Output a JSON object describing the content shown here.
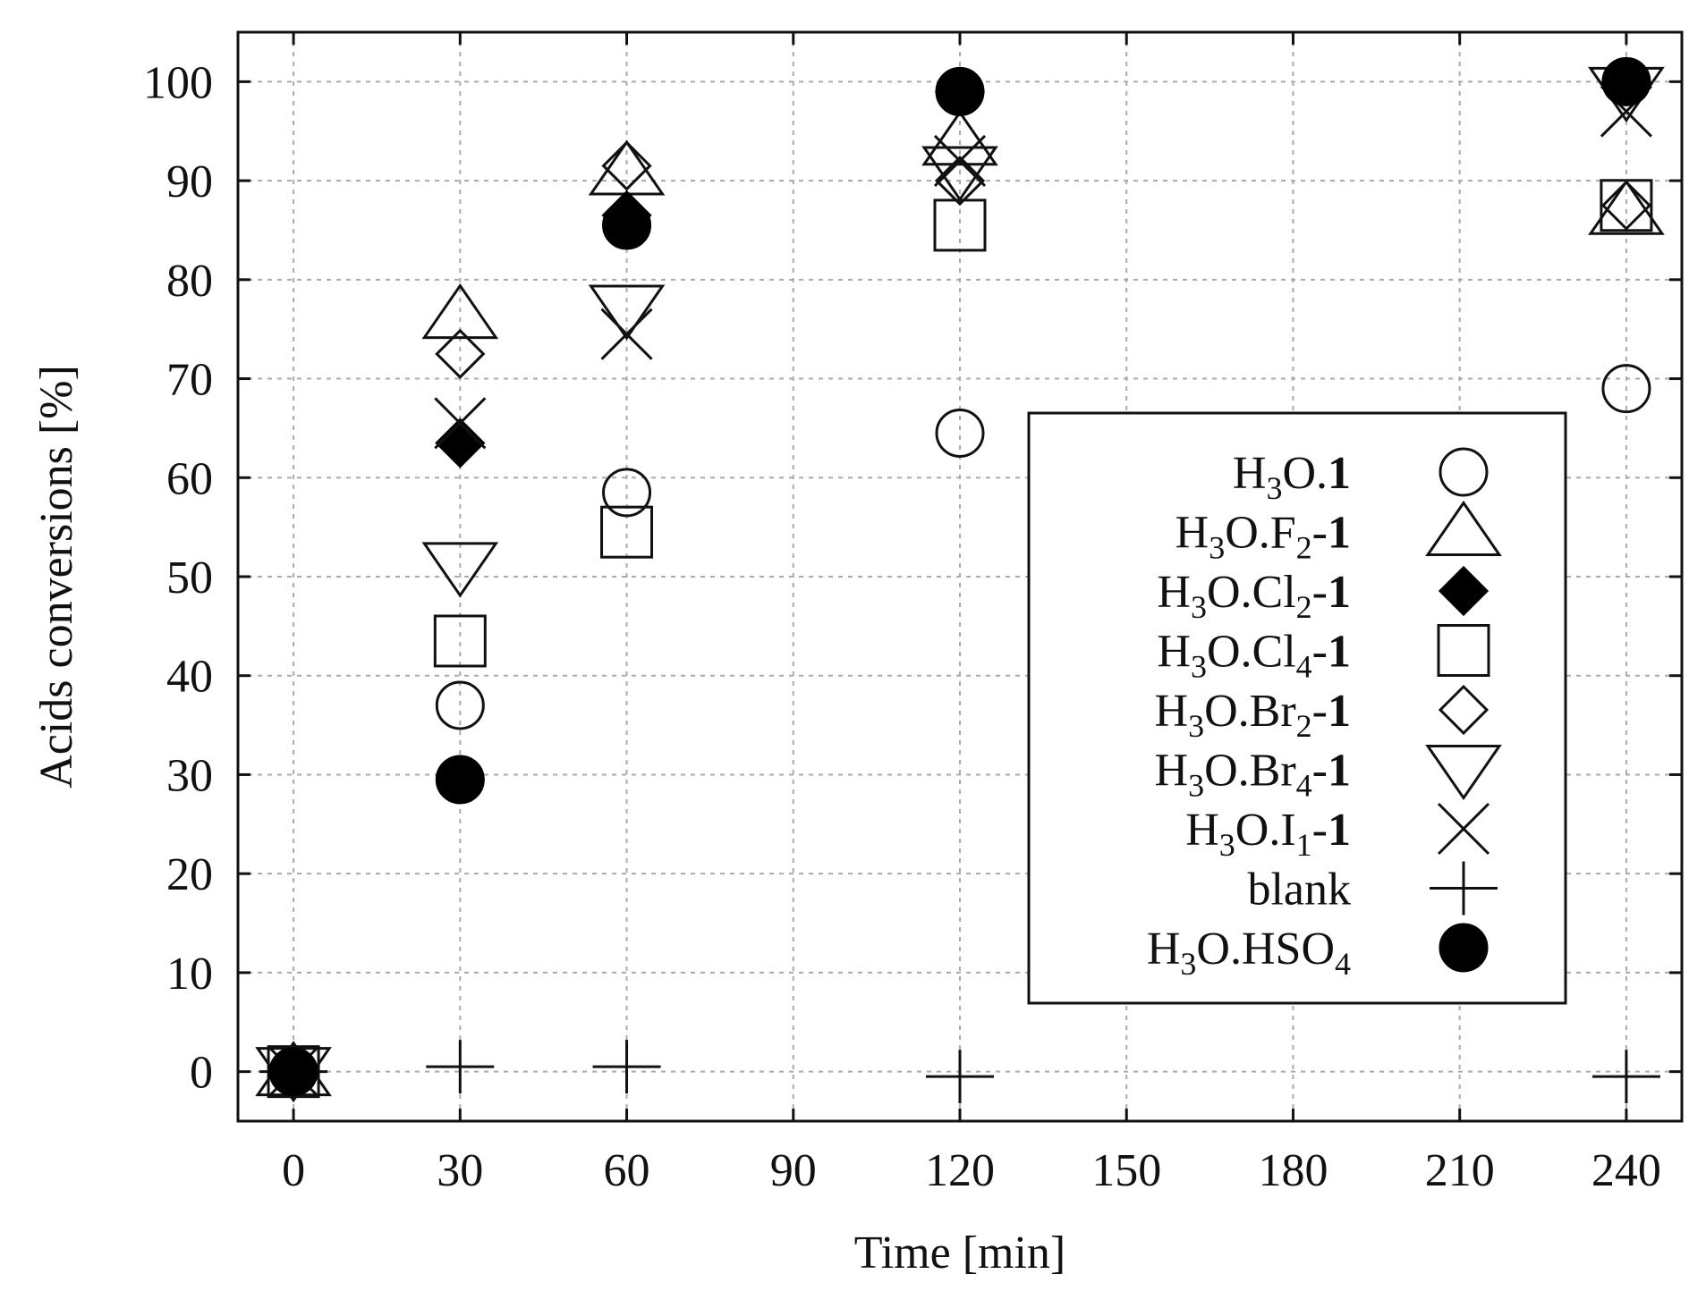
{
  "chart_data": {
    "type": "scatter",
    "xlabel": "Time [min]",
    "ylabel": "Acids conversions [%]",
    "xlim": [
      -10,
      250
    ],
    "ylim": [
      -5,
      105
    ],
    "xticks": [
      0,
      30,
      60,
      90,
      120,
      150,
      180,
      210,
      240
    ],
    "yticks": [
      0,
      10,
      20,
      30,
      40,
      50,
      60,
      70,
      80,
      90,
      100
    ],
    "grid": true,
    "legend_position": "center-right",
    "series": [
      {
        "name": "H3O.1",
        "label_parts": [
          [
            "H",
            "n"
          ],
          [
            "3",
            "sub"
          ],
          [
            "O.",
            "n"
          ],
          [
            "1",
            "b"
          ]
        ],
        "marker": "circle-open",
        "points": [
          [
            0,
            0
          ],
          [
            30,
            37
          ],
          [
            60,
            58.5
          ],
          [
            120,
            64.5
          ],
          [
            240,
            69
          ]
        ]
      },
      {
        "name": "H3O.F2-1",
        "label_parts": [
          [
            "H",
            "n"
          ],
          [
            "3",
            "sub"
          ],
          [
            "O.F",
            "n"
          ],
          [
            "2",
            "sub"
          ],
          [
            "-",
            "n"
          ],
          [
            "1",
            "b"
          ]
        ],
        "marker": "triangle-up-open",
        "points": [
          [
            0,
            0
          ],
          [
            30,
            76.5
          ],
          [
            60,
            91
          ],
          [
            120,
            94
          ],
          [
            240,
            87
          ]
        ]
      },
      {
        "name": "H3O.Cl2-1",
        "label_parts": [
          [
            "H",
            "n"
          ],
          [
            "3",
            "sub"
          ],
          [
            "O.Cl",
            "n"
          ],
          [
            "2",
            "sub"
          ],
          [
            "-",
            "n"
          ],
          [
            "1",
            "b"
          ]
        ],
        "marker": "diamond-filled",
        "points": [
          [
            0,
            0
          ],
          [
            30,
            63.5
          ],
          [
            60,
            86.5
          ],
          [
            120,
            99
          ],
          [
            240,
            100
          ]
        ]
      },
      {
        "name": "H3O.Cl4-1",
        "label_parts": [
          [
            "H",
            "n"
          ],
          [
            "3",
            "sub"
          ],
          [
            "O.Cl",
            "n"
          ],
          [
            "4",
            "sub"
          ],
          [
            "-",
            "n"
          ],
          [
            "1",
            "b"
          ]
        ],
        "marker": "square-open",
        "points": [
          [
            0,
            0
          ],
          [
            30,
            43.5
          ],
          [
            60,
            54.5
          ],
          [
            120,
            85.5
          ],
          [
            240,
            87.5
          ]
        ]
      },
      {
        "name": "H3O.Br2-1",
        "label_parts": [
          [
            "H",
            "n"
          ],
          [
            "3",
            "sub"
          ],
          [
            "O.Br",
            "n"
          ],
          [
            "2",
            "sub"
          ],
          [
            "-",
            "n"
          ],
          [
            "1",
            "b"
          ]
        ],
        "marker": "diamond-open",
        "points": [
          [
            0,
            0
          ],
          [
            30,
            72.5
          ],
          [
            60,
            91.5
          ],
          [
            120,
            90
          ],
          [
            240,
            87.5
          ]
        ]
      },
      {
        "name": "H3O.Br4-1",
        "label_parts": [
          [
            "H",
            "n"
          ],
          [
            "3",
            "sub"
          ],
          [
            "O.Br",
            "n"
          ],
          [
            "4",
            "sub"
          ],
          [
            "-",
            "n"
          ],
          [
            "1",
            "b"
          ]
        ],
        "marker": "triangle-down-open",
        "points": [
          [
            0,
            0
          ],
          [
            30,
            51
          ],
          [
            60,
            77
          ],
          [
            120,
            91
          ],
          [
            240,
            99
          ]
        ]
      },
      {
        "name": "H3O.I1-1",
        "label_parts": [
          [
            "H",
            "n"
          ],
          [
            "3",
            "sub"
          ],
          [
            "O.I",
            "n"
          ],
          [
            "1",
            "sub"
          ],
          [
            "-",
            "n"
          ],
          [
            "1",
            "b"
          ]
        ],
        "marker": "cross",
        "points": [
          [
            0,
            0
          ],
          [
            30,
            65.5
          ],
          [
            60,
            74.5
          ],
          [
            120,
            92
          ],
          [
            240,
            97
          ]
        ]
      },
      {
        "name": "blank",
        "label_parts": [
          [
            "blank",
            "n"
          ]
        ],
        "marker": "plus",
        "points": [
          [
            0,
            0
          ],
          [
            30,
            0.5
          ],
          [
            60,
            0.5
          ],
          [
            120,
            -0.5
          ],
          [
            240,
            -0.5
          ]
        ]
      },
      {
        "name": "H3O.HSO4",
        "label_parts": [
          [
            "H",
            "n"
          ],
          [
            "3",
            "sub"
          ],
          [
            "O.HSO",
            "n"
          ],
          [
            "4",
            "sub"
          ]
        ],
        "marker": "circle-filled",
        "points": [
          [
            0,
            0
          ],
          [
            30,
            29.5
          ],
          [
            60,
            85.5
          ],
          [
            120,
            99
          ],
          [
            240,
            100
          ]
        ]
      }
    ]
  }
}
